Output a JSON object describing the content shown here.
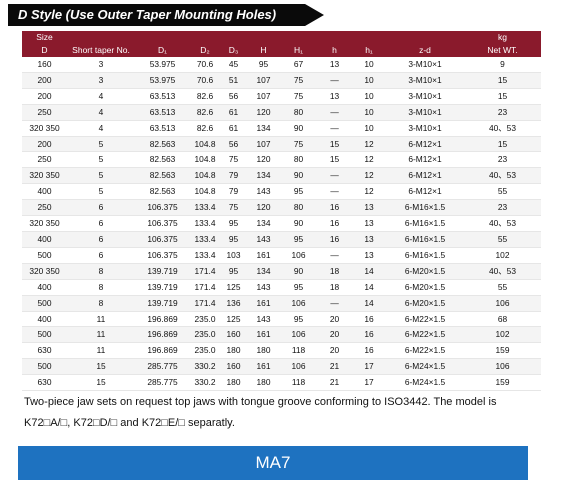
{
  "title": "D Style (Use Outer Taper Mounting Holes)",
  "header": {
    "size": "Size",
    "d": "D",
    "short_taper": "Short taper No.",
    "d1": "D₁",
    "d2": "D₂",
    "d3": "D₃",
    "h_cap": "H",
    "h1_cap": "H₁",
    "h": "h",
    "h1": "h₁",
    "zd": "z-d",
    "kg": "kg",
    "net_wt": "Net WT."
  },
  "rows": [
    [
      "160",
      "3",
      "53.975",
      "70.6",
      "45",
      "95",
      "67",
      "13",
      "10",
      "3-M10×1",
      "9"
    ],
    [
      "200",
      "3",
      "53.975",
      "70.6",
      "51",
      "107",
      "75",
      "—",
      "10",
      "3-M10×1",
      "15"
    ],
    [
      "200",
      "4",
      "63.513",
      "82.6",
      "56",
      "107",
      "75",
      "13",
      "10",
      "3-M10×1",
      "15"
    ],
    [
      "250",
      "4",
      "63.513",
      "82.6",
      "61",
      "120",
      "80",
      "—",
      "10",
      "3-M10×1",
      "23"
    ],
    [
      "320 350",
      "4",
      "63.513",
      "82.6",
      "61",
      "134",
      "90",
      "—",
      "10",
      "3-M10×1",
      "40、53"
    ],
    [
      "200",
      "5",
      "82.563",
      "104.8",
      "56",
      "107",
      "75",
      "15",
      "12",
      "6-M12×1",
      "15"
    ],
    [
      "250",
      "5",
      "82.563",
      "104.8",
      "75",
      "120",
      "80",
      "15",
      "12",
      "6-M12×1",
      "23"
    ],
    [
      "320 350",
      "5",
      "82.563",
      "104.8",
      "79",
      "134",
      "90",
      "—",
      "12",
      "6-M12×1",
      "40、53"
    ],
    [
      "400",
      "5",
      "82.563",
      "104.8",
      "79",
      "143",
      "95",
      "—",
      "12",
      "6-M12×1",
      "55"
    ],
    [
      "250",
      "6",
      "106.375",
      "133.4",
      "75",
      "120",
      "80",
      "16",
      "13",
      "6-M16×1.5",
      "23"
    ],
    [
      "320 350",
      "6",
      "106.375",
      "133.4",
      "95",
      "134",
      "90",
      "16",
      "13",
      "6-M16×1.5",
      "40、53"
    ],
    [
      "400",
      "6",
      "106.375",
      "133.4",
      "95",
      "143",
      "95",
      "16",
      "13",
      "6-M16×1.5",
      "55"
    ],
    [
      "500",
      "6",
      "106.375",
      "133.4",
      "103",
      "161",
      "106",
      "—",
      "13",
      "6-M16×1.5",
      "102"
    ],
    [
      "320 350",
      "8",
      "139.719",
      "171.4",
      "95",
      "134",
      "90",
      "18",
      "14",
      "6-M20×1.5",
      "40、53"
    ],
    [
      "400",
      "8",
      "139.719",
      "171.4",
      "125",
      "143",
      "95",
      "18",
      "14",
      "6-M20×1.5",
      "55"
    ],
    [
      "500",
      "8",
      "139.719",
      "171.4",
      "136",
      "161",
      "106",
      "—",
      "14",
      "6-M20×1.5",
      "106"
    ],
    [
      "400",
      "11",
      "196.869",
      "235.0",
      "125",
      "143",
      "95",
      "20",
      "16",
      "6-M22×1.5",
      "68"
    ],
    [
      "500",
      "11",
      "196.869",
      "235.0",
      "160",
      "161",
      "106",
      "20",
      "16",
      "6-M22×1.5",
      "102"
    ],
    [
      "630",
      "11",
      "196.869",
      "235.0",
      "180",
      "180",
      "118",
      "20",
      "16",
      "6-M22×1.5",
      "159"
    ],
    [
      "500",
      "15",
      "285.775",
      "330.2",
      "160",
      "161",
      "106",
      "21",
      "17",
      "6-M24×1.5",
      "106"
    ],
    [
      "630",
      "15",
      "285.775",
      "330.2",
      "180",
      "180",
      "118",
      "21",
      "17",
      "6-M24×1.5",
      "159"
    ]
  ],
  "note_line1": "Two-piece jaw sets on request top jaws with tongue groove conforming to ISO3442.  The model is",
  "note_line2": "K72□A/□, K72□D/□ and K72□E/□ separatly.",
  "model": "MA7"
}
